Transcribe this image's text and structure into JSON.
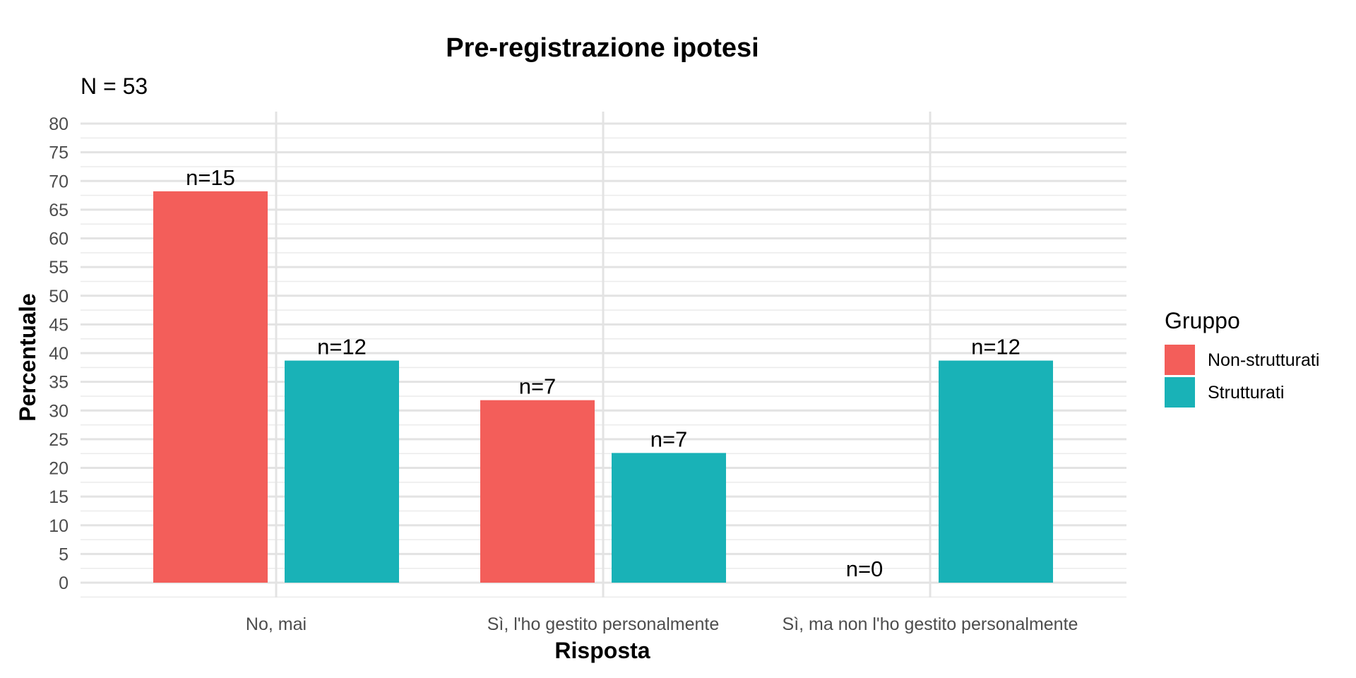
{
  "chart_data": {
    "type": "bar",
    "title": "Pre-registrazione ipotesi",
    "subtitle": "N = 53",
    "xlabel": "Risposta",
    "ylabel": "Percentuale",
    "categories": [
      "No, mai",
      "Sì, l'ho gestito personalmente",
      "Sì, ma non l'ho gestito personalmente"
    ],
    "series": [
      {
        "name": "Non-strutturati",
        "color": "#F35E5A",
        "values": [
          68.2,
          31.8,
          0
        ],
        "labels": [
          "n=15",
          "n=7",
          "n=0"
        ]
      },
      {
        "name": "Strutturati",
        "color": "#19B2B7",
        "values": [
          38.7,
          22.6,
          38.7
        ],
        "labels": [
          "n=12",
          "n=7",
          "n=12"
        ]
      }
    ],
    "ylim": [
      0,
      80
    ],
    "yticks": [
      0,
      5,
      10,
      15,
      20,
      25,
      30,
      35,
      40,
      45,
      50,
      55,
      60,
      65,
      70,
      75,
      80
    ],
    "legend": {
      "title": "Gruppo",
      "position": "right"
    },
    "grid": true
  }
}
